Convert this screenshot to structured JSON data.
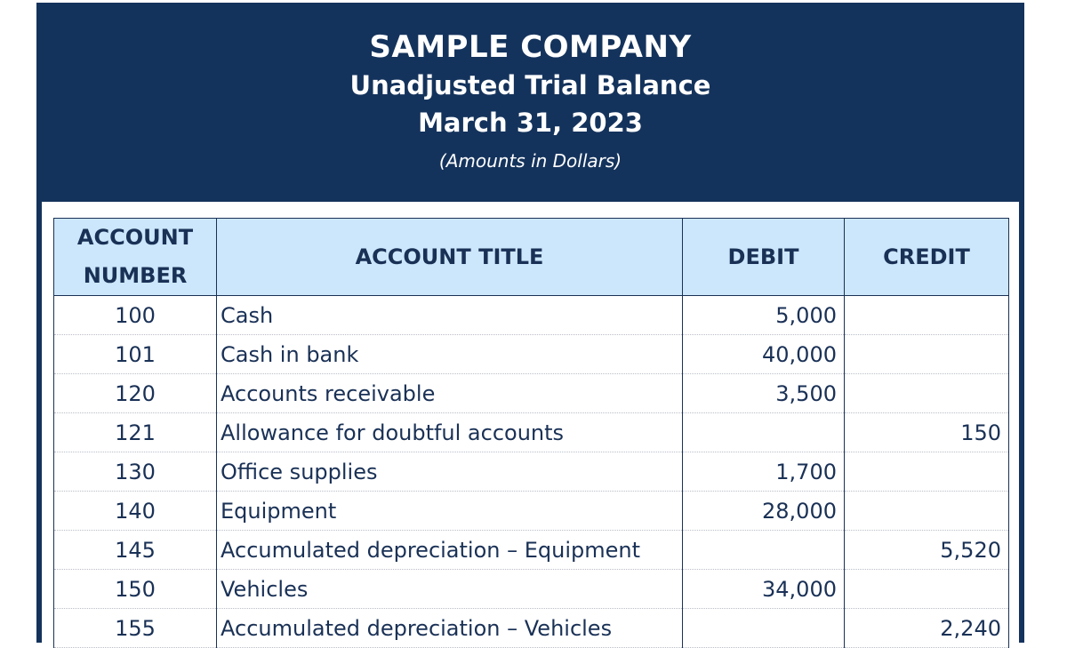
{
  "header": {
    "company": "SAMPLE COMPANY",
    "subtitle": "Unadjusted Trial Balance",
    "date": "March 31, 2023",
    "note": "(Amounts in Dollars)"
  },
  "columns": {
    "number_line1": "ACCOUNT",
    "number_line2": "NUMBER",
    "title": "ACCOUNT TITLE",
    "debit": "DEBIT",
    "credit": "CREDIT"
  },
  "rows": [
    {
      "number": "100",
      "title": "Cash",
      "debit": "5,000",
      "credit": ""
    },
    {
      "number": "101",
      "title": "Cash in bank",
      "debit": "40,000",
      "credit": ""
    },
    {
      "number": "120",
      "title": "Accounts receivable",
      "debit": "3,500",
      "credit": ""
    },
    {
      "number": "121",
      "title": "Allowance for doubtful accounts",
      "debit": "",
      "credit": "150"
    },
    {
      "number": "130",
      "title": "Office supplies",
      "debit": "1,700",
      "credit": ""
    },
    {
      "number": "140",
      "title": "Equipment",
      "debit": "28,000",
      "credit": ""
    },
    {
      "number": "145",
      "title": "Accumulated depreciation – Equipment",
      "debit": "",
      "credit": "5,520"
    },
    {
      "number": "150",
      "title": "Vehicles",
      "debit": "34,000",
      "credit": ""
    },
    {
      "number": "155",
      "title": "Accumulated depreciation – Vehicles",
      "debit": "",
      "credit": "2,240"
    }
  ],
  "colors": {
    "navy": "#14335c",
    "header_fill": "#cce6fb"
  }
}
